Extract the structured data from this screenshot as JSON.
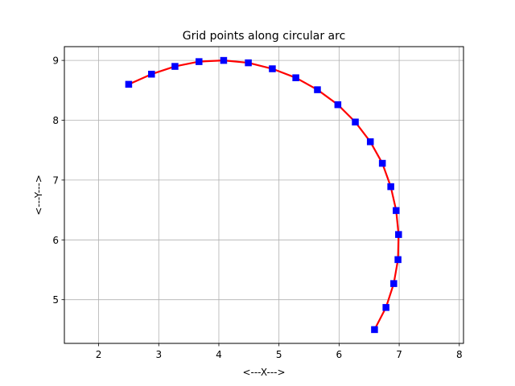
{
  "chart_data": {
    "type": "line",
    "title": "Grid points along circular arc",
    "xlabel": "<---X--->",
    "ylabel": "<---Y--->",
    "xlim": [
      1.43,
      8.07
    ],
    "ylim": [
      4.27,
      9.23
    ],
    "xticks": [
      2,
      3,
      4,
      5,
      6,
      7,
      8
    ],
    "yticks": [
      5,
      6,
      7,
      8,
      9
    ],
    "grid": true,
    "series": [
      {
        "style": "curve",
        "color": "#ff0000",
        "x": [
          2.5,
          2.88,
          3.27,
          3.67,
          4.08,
          4.49,
          4.89,
          5.28,
          5.64,
          5.98,
          6.27,
          6.52,
          6.72,
          6.86,
          6.95,
          6.99,
          6.98,
          6.91,
          6.78,
          6.59
        ],
        "y": [
          8.6,
          8.77,
          8.9,
          8.98,
          9.0,
          8.96,
          8.86,
          8.71,
          8.51,
          8.26,
          7.97,
          7.64,
          7.28,
          6.89,
          6.49,
          6.09,
          5.67,
          5.27,
          4.87,
          4.5
        ]
      },
      {
        "style": "markers",
        "marker": "square",
        "color": "#0000ff",
        "x": [
          2.5,
          2.88,
          3.27,
          3.67,
          4.08,
          4.49,
          4.89,
          5.28,
          5.64,
          5.98,
          6.27,
          6.52,
          6.72,
          6.86,
          6.95,
          6.99,
          6.98,
          6.91,
          6.78,
          6.59
        ],
        "y": [
          8.6,
          8.77,
          8.9,
          8.98,
          9.0,
          8.96,
          8.86,
          8.71,
          8.51,
          8.26,
          7.97,
          7.64,
          7.28,
          6.89,
          6.49,
          6.09,
          5.67,
          5.27,
          4.87,
          4.5
        ]
      }
    ]
  }
}
